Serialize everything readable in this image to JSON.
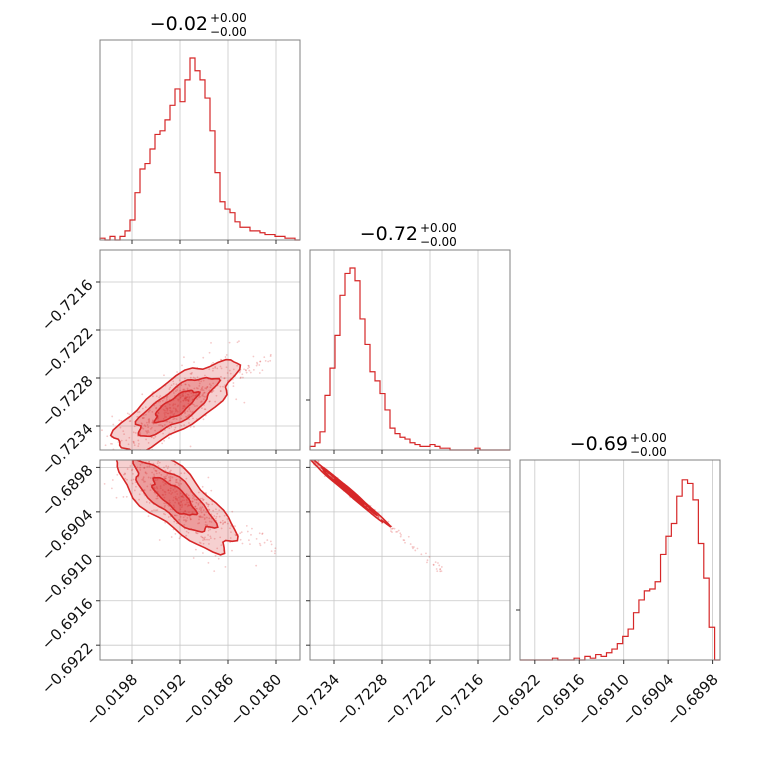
{
  "chart_data": {
    "type": "corner",
    "color": "#d62728",
    "parameters": [
      {
        "title": "−0.02",
        "title_plus": "+0.00",
        "title_minus": "−0.00",
        "range": [
          -0.0202,
          -0.0177
        ],
        "ticks": [
          -0.0198,
          -0.0192,
          -0.0186,
          -0.018
        ],
        "tick_labels": [
          "−0.0198",
          "−0.0192",
          "−0.0186",
          "−0.0180"
        ],
        "histogram": [
          0.01,
          0.0,
          0.02,
          0.0,
          0.02,
          0.05,
          0.11,
          0.26,
          0.39,
          0.42,
          0.5,
          0.58,
          0.6,
          0.66,
          0.74,
          0.83,
          0.76,
          0.88,
          1.0,
          0.93,
          0.88,
          0.78,
          0.6,
          0.37,
          0.21,
          0.17,
          0.15,
          0.1,
          0.07,
          0.07,
          0.05,
          0.05,
          0.04,
          0.03,
          0.03,
          0.02,
          0.02,
          0.01,
          0.01,
          0.0
        ]
      },
      {
        "title": "−0.72",
        "title_plus": "+0.00",
        "title_minus": "−0.00",
        "range": [
          -0.7237,
          -0.7212
        ],
        "ticks": [
          -0.7234,
          -0.7228,
          -0.7222,
          -0.7216
        ],
        "tick_labels": [
          "−0.7234",
          "−0.7228",
          "−0.7222",
          "−0.7216"
        ],
        "histogram": [
          0.02,
          0.04,
          0.1,
          0.3,
          0.45,
          0.63,
          0.85,
          0.97,
          1.0,
          0.93,
          0.72,
          0.58,
          0.43,
          0.38,
          0.31,
          0.22,
          0.12,
          0.09,
          0.07,
          0.06,
          0.04,
          0.03,
          0.02,
          0.02,
          0.03,
          0.02,
          0.01,
          0.01,
          0.0,
          0.0,
          0.0,
          0.0,
          0.0,
          0.01,
          0.0,
          0.0,
          0.0,
          0.0,
          0.0,
          0.0
        ]
      },
      {
        "title": "−0.69",
        "title_plus": "+0.00",
        "title_minus": "−0.00",
        "range": [
          -0.6924,
          -0.6897
        ],
        "ticks": [
          -0.6922,
          -0.6916,
          -0.691,
          -0.6904,
          -0.6898
        ],
        "tick_labels": [
          "−0.6922",
          "−0.6916",
          "−0.6910",
          "−0.6904",
          "−0.6898"
        ],
        "histogram": [
          0.0,
          0.0,
          0.0,
          0.0,
          0.0,
          0.0,
          0.01,
          0.0,
          0.0,
          0.0,
          0.01,
          0.0,
          0.02,
          0.01,
          0.03,
          0.02,
          0.04,
          0.06,
          0.09,
          0.13,
          0.17,
          0.26,
          0.33,
          0.38,
          0.39,
          0.43,
          0.58,
          0.68,
          0.75,
          0.9,
          0.99,
          0.97,
          0.88,
          0.64,
          0.45,
          0.18,
          0.0
        ]
      }
    ],
    "grid": true
  }
}
